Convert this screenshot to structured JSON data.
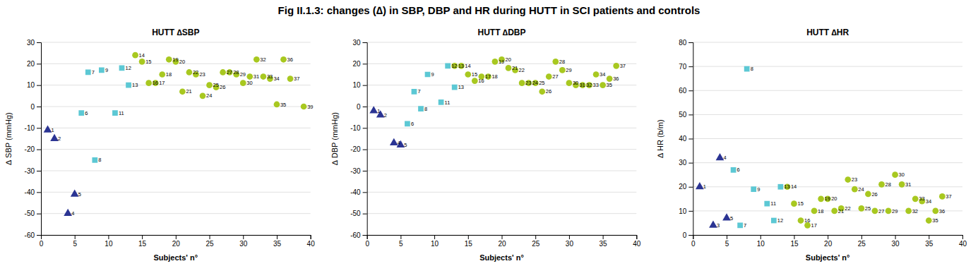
{
  "title": "Fig II.1.3: changes (∆) in SBP, DBP and HR during HUTT in SCI patients and controls",
  "chart_data": [
    {
      "type": "scatter",
      "title": "HUTT ∆SBP",
      "x_label": "Subjects' n°",
      "y_label": "∆ SBP (mmHg)",
      "xlim": [
        0,
        40
      ],
      "xticks": [
        0,
        5,
        10,
        15,
        20,
        25,
        30,
        35,
        40
      ],
      "ylim": [
        -60,
        30
      ],
      "yticks": [
        -60,
        -50,
        -40,
        -30,
        -20,
        -10,
        0,
        10,
        20,
        30
      ],
      "grid": "y",
      "series": [
        {
          "marker": "triangle",
          "color": "#2b3493",
          "x": [
            1,
            2,
            4,
            5
          ],
          "values": [
            -11,
            -15,
            -50,
            -41
          ],
          "labels": [
            "1",
            "2",
            "4",
            "5"
          ]
        },
        {
          "marker": "square",
          "color": "#5cc8d4",
          "x": [
            6,
            7,
            8,
            9,
            11,
            12,
            13
          ],
          "values": [
            -3,
            16,
            -25,
            17,
            -3,
            18,
            10
          ],
          "labels": [
            "6",
            "7",
            "8",
            "9",
            "11",
            "12",
            "13"
          ]
        },
        {
          "marker": "circle",
          "color": "#a8c820",
          "x": [
            14,
            15,
            16,
            17,
            18,
            19,
            20,
            21,
            22,
            23,
            24,
            25,
            26,
            27,
            28,
            29,
            30,
            31,
            32,
            33,
            34,
            35,
            36,
            37,
            39
          ],
          "values": [
            24,
            21,
            11,
            11,
            15,
            22,
            21,
            7,
            16,
            15,
            5,
            10,
            9,
            16,
            16,
            15,
            11,
            14,
            22,
            14,
            13,
            1,
            22,
            13,
            0
          ],
          "labels": [
            "14",
            "15",
            "16",
            "17",
            "18",
            "19",
            "20",
            "21",
            "22",
            "23",
            "24",
            "25",
            "26",
            "27",
            "28",
            "29",
            "30",
            "31",
            "32",
            "33",
            "34",
            "35",
            "36",
            "37",
            "39"
          ]
        }
      ]
    },
    {
      "type": "scatter",
      "title": "HUTT ∆DBP",
      "x_label": "Subjects' n°",
      "y_label": "∆ DBP (mmHg)",
      "xlim": [
        0,
        40
      ],
      "xticks": [
        0,
        5,
        10,
        15,
        20,
        25,
        30,
        35,
        40
      ],
      "ylim": [
        -60,
        30
      ],
      "yticks": [
        -60,
        -50,
        -40,
        -30,
        -20,
        -10,
        0,
        10,
        20,
        30
      ],
      "grid": "y",
      "series": [
        {
          "marker": "triangle",
          "color": "#2b3493",
          "x": [
            1,
            2,
            4,
            5
          ],
          "values": [
            -2,
            -4,
            -17,
            -18
          ],
          "labels": [
            "1",
            "2",
            "4",
            "5"
          ]
        },
        {
          "marker": "square",
          "color": "#5cc8d4",
          "x": [
            6,
            7,
            8,
            9,
            11,
            12,
            13
          ],
          "values": [
            -8,
            7,
            -1,
            15,
            2,
            19,
            9
          ],
          "labels": [
            "6",
            "7",
            "8",
            "9",
            "11",
            "12",
            "13"
          ]
        },
        {
          "marker": "circle",
          "color": "#a8c820",
          "x": [
            13,
            14,
            15,
            16,
            17,
            18,
            19,
            20,
            21,
            22,
            23,
            24,
            25,
            26,
            27,
            28,
            29,
            30,
            31,
            32,
            33,
            34,
            35,
            36,
            37
          ],
          "values": [
            19,
            19,
            15,
            12,
            14,
            14,
            21,
            22,
            18,
            17,
            11,
            11,
            11,
            7,
            14,
            21,
            17,
            11,
            10,
            10,
            10,
            15,
            10,
            13,
            19
          ],
          "labels": [
            "13",
            "14",
            "15",
            "16",
            "17",
            "18",
            "19",
            "20",
            "21",
            "22",
            "23",
            "24",
            "25",
            "26",
            "27",
            "28",
            "29",
            "30",
            "31",
            "32",
            "33",
            "34",
            "35",
            "36",
            "37"
          ]
        }
      ]
    },
    {
      "type": "scatter",
      "title": "HUTT ∆HR",
      "x_label": "Subjects' n°",
      "y_label": "∆ HR (b/m)",
      "xlim": [
        0,
        40
      ],
      "xticks": [
        0,
        5,
        10,
        15,
        20,
        25,
        30,
        35,
        40
      ],
      "ylim": [
        0,
        80
      ],
      "yticks": [
        0,
        10,
        20,
        30,
        40,
        50,
        60,
        70,
        80
      ],
      "grid": "y",
      "series": [
        {
          "marker": "triangle",
          "color": "#2b3493",
          "x": [
            1,
            3,
            4,
            5
          ],
          "values": [
            20,
            4,
            32,
            7
          ],
          "labels": [
            "1",
            "3",
            "4",
            "5"
          ]
        },
        {
          "marker": "square",
          "color": "#5cc8d4",
          "x": [
            6,
            7,
            9,
            11,
            12,
            13
          ],
          "values": [
            27,
            4,
            19,
            13,
            6,
            20
          ],
          "labels": [
            "6",
            "7",
            "9",
            "11",
            "12",
            "13"
          ]
        },
        {
          "marker": "square",
          "color": "#5cc8d4",
          "x": [
            8
          ],
          "values": [
            69
          ],
          "labels": [
            "8"
          ]
        },
        {
          "marker": "circle",
          "color": "#a8c820",
          "x": [
            14,
            15,
            16,
            17,
            18,
            19,
            20,
            21,
            22,
            23,
            24,
            25,
            26,
            27,
            28,
            29,
            30,
            31,
            32,
            33,
            34,
            35,
            36,
            37
          ],
          "values": [
            20,
            13,
            6,
            4,
            10,
            15,
            15,
            10,
            11,
            23,
            19,
            11,
            17,
            10,
            21,
            10,
            25,
            21,
            10,
            15,
            14,
            6,
            10,
            16
          ],
          "labels": [
            "14",
            "15",
            "16",
            "17",
            "18",
            "19",
            "20",
            "21",
            "22",
            "23",
            "24",
            "25",
            "26",
            "27",
            "28",
            "29",
            "30",
            "31",
            "32",
            "33",
            "34",
            "35",
            "36",
            "37"
          ]
        }
      ]
    }
  ]
}
